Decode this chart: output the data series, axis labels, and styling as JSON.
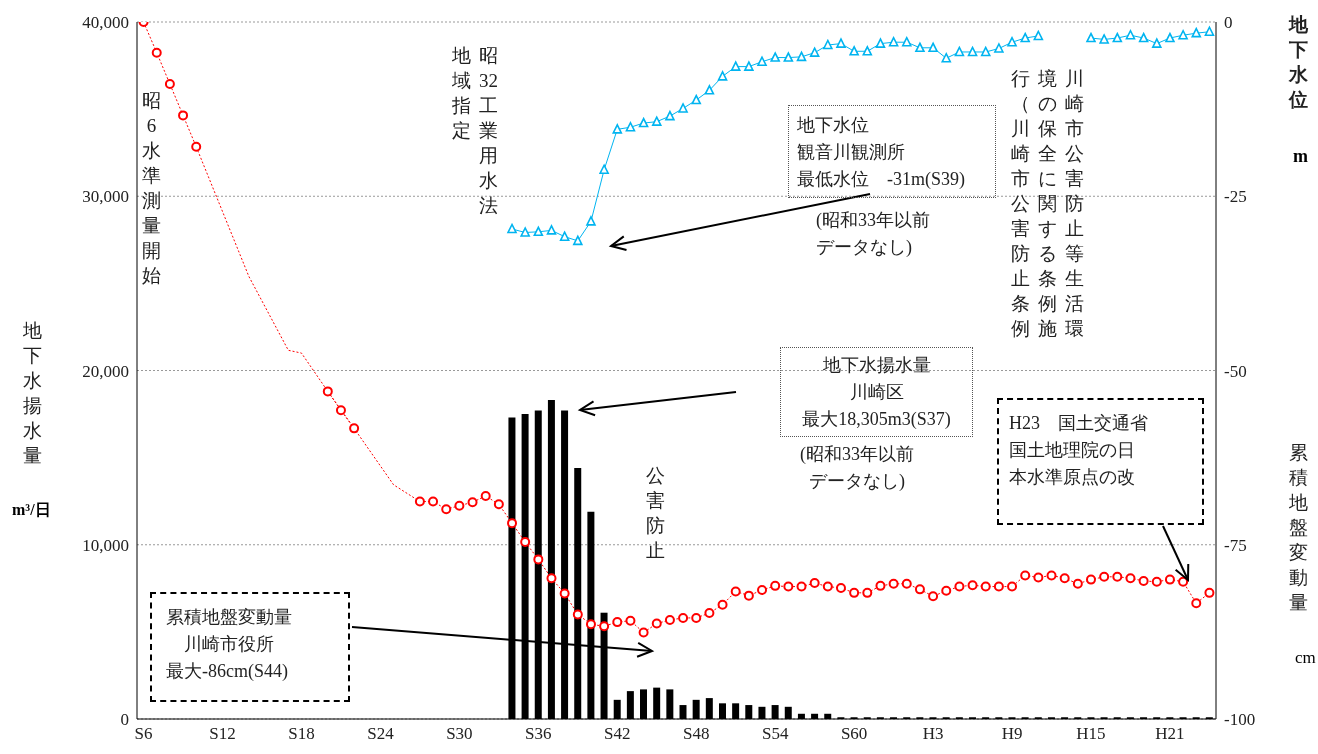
{
  "chart_data": {
    "type": "bar",
    "categories": [
      "S6",
      null,
      null,
      null,
      null,
      null,
      "S12",
      null,
      null,
      null,
      null,
      null,
      "S18",
      null,
      null,
      null,
      null,
      null,
      "S24",
      null,
      null,
      null,
      null,
      null,
      "S30",
      null,
      null,
      null,
      null,
      null,
      "S36",
      null,
      null,
      null,
      null,
      null,
      "S42",
      null,
      null,
      null,
      null,
      null,
      "S48",
      null,
      null,
      null,
      null,
      null,
      "S54",
      null,
      null,
      null,
      null,
      null,
      "S60",
      null,
      null,
      null,
      null,
      null,
      "H3",
      null,
      null,
      null,
      null,
      null,
      "H9",
      null,
      null,
      null,
      null,
      null,
      "H15",
      null,
      null,
      null,
      null,
      null,
      "H21",
      null,
      null,
      null
    ],
    "series": [
      {
        "color": "#000000",
        "values": [
          null,
          null,
          null,
          null,
          null,
          null,
          null,
          null,
          null,
          null,
          null,
          null,
          null,
          null,
          null,
          null,
          null,
          null,
          null,
          null,
          null,
          null,
          null,
          null,
          null,
          null,
          null,
          null,
          17300,
          17500,
          17700,
          18305,
          17700,
          14400,
          11900,
          6100,
          1100,
          1600,
          1700,
          1800,
          1700,
          800,
          1100,
          1200,
          900,
          900,
          800,
          700,
          800,
          700,
          300,
          300,
          300,
          100,
          100,
          100,
          100,
          100,
          100,
          100,
          100,
          100,
          100,
          100,
          100,
          100,
          100,
          100,
          100,
          100,
          100,
          100,
          100,
          100,
          100,
          100,
          100,
          100,
          100,
          100,
          100,
          100
        ]
      },
      {
        "type": "line",
        "axis": "y2",
        "color": "#ff0000",
        "marker": "none",
        "line_style": "dotted",
        "values": [
          null,
          null,
          null,
          null,
          -17.9,
          null,
          null,
          null,
          -36.5,
          null,
          null,
          -47.1,
          -47.5,
          null,
          -53.0,
          null,
          -58.3,
          null,
          null,
          -66.4,
          null,
          -68.8,
          null,
          null,
          null,
          null,
          null,
          null,
          null,
          null,
          null,
          null,
          null,
          null,
          null,
          null,
          null,
          null,
          null,
          null,
          null,
          null,
          null,
          null,
          null,
          null,
          null,
          null,
          null,
          null,
          null,
          null,
          null,
          null,
          null,
          null,
          null,
          null,
          null,
          null,
          null,
          null,
          null,
          null,
          null,
          null,
          null,
          null,
          null,
          null,
          null,
          null,
          null,
          null,
          null,
          null,
          null,
          null,
          null,
          null,
          null,
          null
        ]
      },
      {
        "type": "line",
        "axis": "y2",
        "color": "#ff0000",
        "marker": "circle",
        "line_style": "dotted",
        "values": [
          0,
          -4.4,
          -8.9,
          -13.4,
          -17.9,
          null,
          null,
          null,
          null,
          null,
          null,
          null,
          null,
          null,
          -53.0,
          -55.7,
          -58.3,
          null,
          null,
          null,
          null,
          -68.8,
          -68.8,
          -69.9,
          -69.4,
          -68.9,
          -68.0,
          -69.2,
          -71.9,
          -74.6,
          -77.1,
          -79.8,
          -82.0,
          -85.0,
          -86.4,
          -86.7,
          -86.1,
          -85.9,
          -87.6,
          -86.3,
          -85.8,
          -85.5,
          -85.5,
          -84.8,
          -83.6,
          -81.7,
          -82.3,
          -81.5,
          -80.9,
          -81.0,
          -81.0,
          -80.5,
          -81.0,
          -81.2,
          -81.9,
          -81.9,
          -80.9,
          -80.6,
          -80.6,
          -81.4,
          -82.4,
          -81.6,
          -81.0,
          -80.8,
          -81.0,
          -81.0,
          -81.0,
          -79.4,
          -79.7,
          -79.4,
          -79.8,
          -80.6,
          -80.0,
          -79.6,
          -79.6,
          -79.8,
          -80.2,
          -80.3,
          -80.0,
          -80.3,
          -83.4,
          -81.9
        ]
      },
      {
        "type": "line",
        "axis": "y2",
        "color": "#00b4f0",
        "marker": "triangle",
        "line_style": "solid",
        "values": [
          null,
          null,
          null,
          null,
          null,
          null,
          null,
          null,
          null,
          null,
          null,
          null,
          null,
          null,
          null,
          null,
          null,
          null,
          null,
          null,
          null,
          null,
          null,
          null,
          null,
          null,
          null,
          null,
          -29.7,
          -30.2,
          -30.1,
          -29.9,
          -30.8,
          -31.4,
          -28.6,
          -21.2,
          -15.4,
          -15.1,
          -14.5,
          -14.3,
          -13.5,
          -12.4,
          -11.2,
          -9.8,
          -7.8,
          -6.4,
          -6.4,
          -5.7,
          -5.1,
          -5.1,
          -5.0,
          -4.4,
          -3.3,
          -3.1,
          -4.2,
          -4.2,
          -3.1,
          -2.9,
          -2.9,
          -3.7,
          -3.7,
          -5.2,
          -4.3,
          -4.3,
          -4.3,
          -3.8,
          -2.9,
          -2.3,
          -2.0,
          null,
          null,
          null,
          -2.3,
          -2.5,
          -2.3,
          -1.9,
          -2.3,
          -3.1,
          -2.3,
          -1.9,
          -1.6,
          -1.4
        ]
      }
    ],
    "ylabel": "地下水揚水量\nm³/日",
    "y2label": "地下水位\nm",
    "ylim": [
      0,
      40000
    ],
    "yticks": [
      0,
      {
        "value": 10000,
        "label": "10,000"
      },
      {
        "value": 20000,
        "label": "20,000"
      },
      {
        "value": 30000,
        "label": "30,000"
      },
      {
        "value": 40000,
        "label": "40,000"
      }
    ],
    "y2lim": [
      -100,
      0
    ],
    "y2ticks": [
      -100,
      -75,
      -50,
      -25,
      0
    ],
    "grid": "y",
    "legend": false,
    "annotations": [
      "昭6水準測量開始",
      "昭32工業用水法地域指定",
      "公害防止",
      "川崎市公害防止等生活環境の保全に関する条例施行（川崎市公害防止条例",
      "地下水位観音川観測所最低水位　-31m(S39)",
      "(昭和33年以前データなし)",
      "地下水揚水量川崎区最大18,305m3(S37)",
      "(昭和33年以前データなし)",
      "H23　国土交通省国土地理院の日本水準原点の改",
      "累積地盤変動量川崎市役所最大-86cm(S44)",
      "累積地盤変動量\ncm"
    ]
  }
}
